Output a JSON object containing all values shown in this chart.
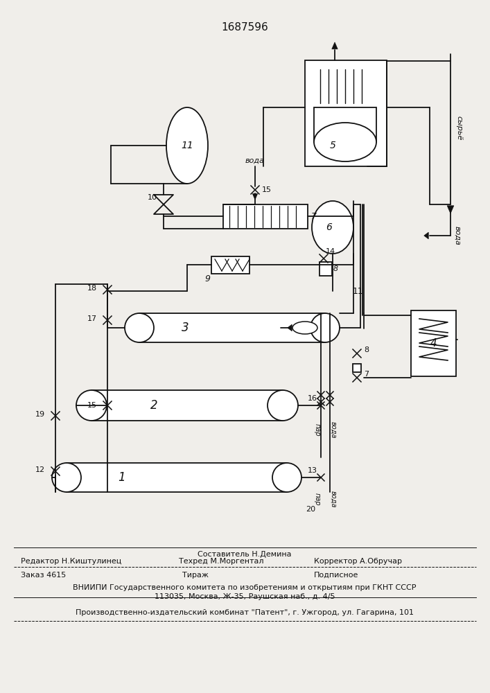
{
  "patent_number": "1687596",
  "bg": "#f0eeea",
  "lc": "#111111",
  "tc": "#111111",
  "footer": {
    "sestavitel": "Составитель Н.Демина",
    "redaktor": "Редактор Н.Киштулинец",
    "tehred": "Техред М.Моргентал",
    "korrektor": "Корректор А.Обручар",
    "zakaz": "Заказ 4615",
    "tirazh": "Тираж",
    "podpisnoe": "Подписное",
    "vniipи": "ВНИИПИ Государственного комитета по изобретениям и открытиям при ГКНТ СССР",
    "addr": "113035, Москва, Ж-35, Раушская наб., д. 4/5",
    "patent_firm": "Производственно-издательский комбинат \"Патент\", г. Ужгород, ул. Гагарина, 101"
  }
}
